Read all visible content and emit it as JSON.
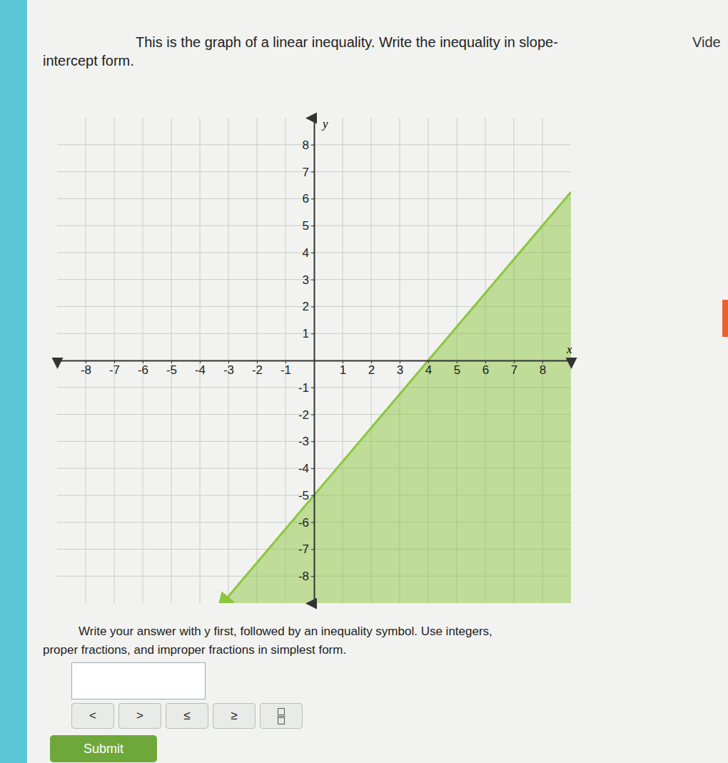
{
  "page": {
    "corner_link": "Vide",
    "question": [
      "This is the graph of a linear inequality. Write the inequality in slope-",
      "intercept form."
    ],
    "instructions": [
      "Write your answer with y first, followed by an inequality symbol. Use integers,",
      "proper fractions, and improper fractions in simplest form."
    ],
    "buttons": [
      "<",
      ">",
      "≤",
      "≥"
    ],
    "submit": "Submit"
  },
  "chart_data": {
    "type": "inequality",
    "x_label": "x",
    "y_label": "y",
    "boundary": {
      "x": [
        -3.2,
        9
      ],
      "y": [
        -9,
        6.25
      ]
    },
    "color": "#8cc63f",
    "line_style": "solid",
    "grid": true,
    "xlim": [
      -9,
      9
    ],
    "ylim": [
      -9,
      9
    ],
    "xticks": [
      -8,
      -7,
      -6,
      -5,
      -4,
      -3,
      -2,
      -1,
      1,
      2,
      3,
      4,
      5,
      6,
      7,
      8
    ],
    "yticks": [
      -8,
      -7,
      -6,
      -5,
      -4,
      -3,
      -2,
      -1,
      1,
      2,
      3,
      4,
      5,
      6,
      7,
      8
    ]
  }
}
